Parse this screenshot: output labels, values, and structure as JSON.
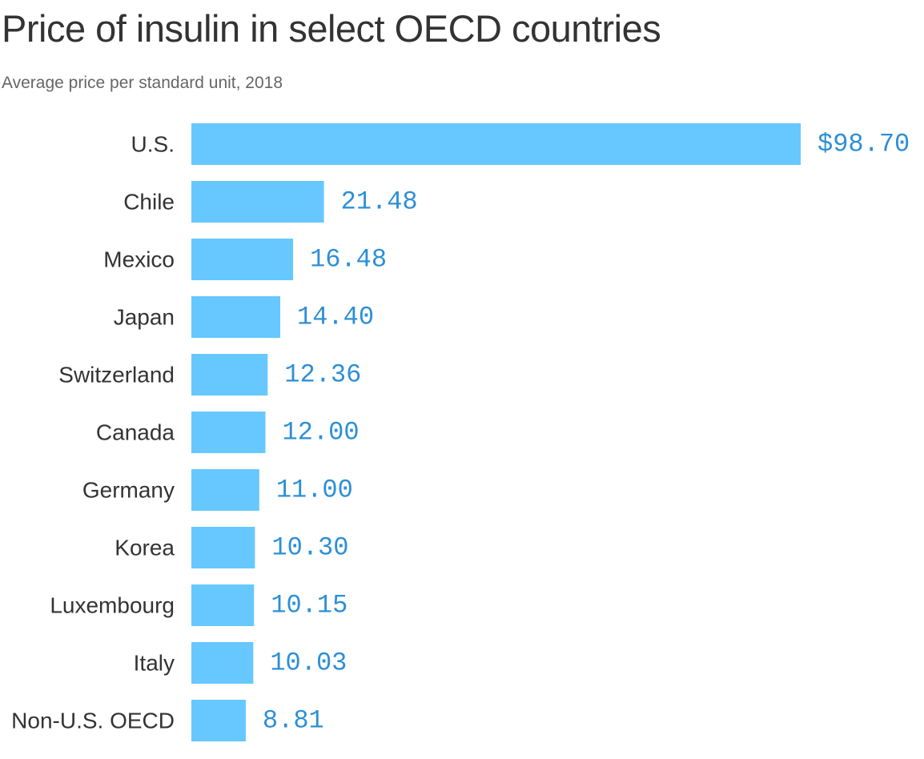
{
  "title": "Price of insulin in select OECD countries",
  "subtitle": "Average price per standard unit, 2018",
  "colors": {
    "bar": "#66C8FF",
    "value_label": "#2D8FD6",
    "category_label": "#333333"
  },
  "chart_data": {
    "type": "bar",
    "orientation": "horizontal",
    "title": "Price of insulin in select OECD countries",
    "subtitle": "Average price per standard unit, 2018",
    "categories": [
      "U.S.",
      "Chile",
      "Mexico",
      "Japan",
      "Switzerland",
      "Canada",
      "Germany",
      "Korea",
      "Luxembourg",
      "Italy",
      "Non-U.S. OECD"
    ],
    "values": [
      98.7,
      21.48,
      16.48,
      14.4,
      12.36,
      12.0,
      11.0,
      10.3,
      10.15,
      10.03,
      8.81
    ],
    "value_labels": [
      "$98.70",
      "21.48",
      "16.48",
      "14.40",
      "12.36",
      "12.00",
      "11.00",
      "10.30",
      "10.15",
      "10.03",
      "8.81"
    ],
    "xlim": [
      0,
      98.7
    ],
    "grid": false,
    "legend": "none"
  }
}
